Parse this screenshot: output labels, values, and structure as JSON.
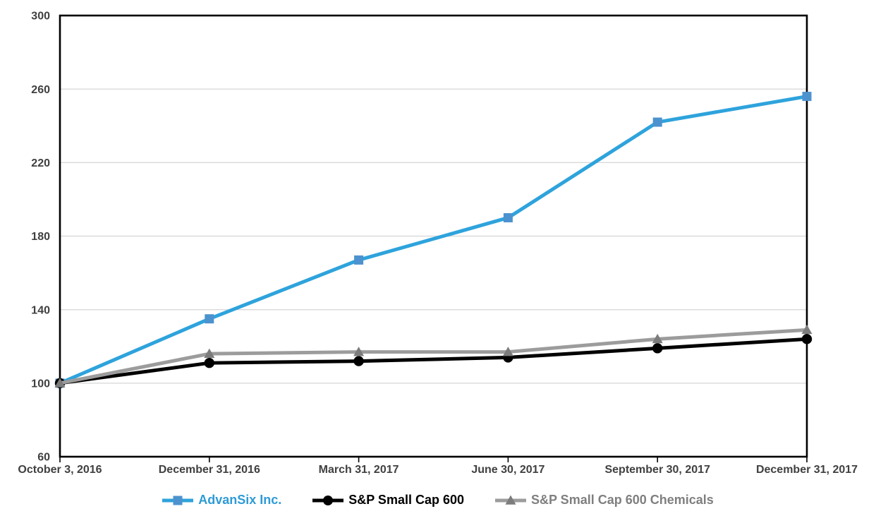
{
  "chart_data": {
    "type": "line",
    "title": "",
    "xlabel": "",
    "ylabel": "",
    "x_categories": [
      "October 3, 2016",
      "December 31, 2016",
      "March 31, 2017",
      "June 30, 2017",
      "September 30, 2017",
      "December 31, 2017"
    ],
    "y_ticks": [
      60,
      100,
      140,
      180,
      220,
      260,
      300
    ],
    "ylim": [
      60,
      300
    ],
    "grid": "horizontal",
    "legend_position": "bottom",
    "series": [
      {
        "name": "AdvanSix Inc.",
        "marker": "square",
        "line_color": "#2EA3DC",
        "marker_color": "#4C92CE",
        "label_color": "#2E9BD6",
        "values": [
          100,
          135,
          167,
          190,
          242,
          256
        ]
      },
      {
        "name": "S&P Small Cap 600",
        "marker": "circle",
        "line_color": "#000000",
        "marker_color": "#000000",
        "label_color": "#000000",
        "values": [
          100,
          111,
          112,
          114,
          119,
          124
        ]
      },
      {
        "name": "S&P Small Cap 600 Chemicals",
        "marker": "triangle",
        "line_color": "#9C9C9C",
        "marker_color": "#7C7C7C",
        "label_color": "#7F7F7F",
        "values": [
          100,
          116,
          117,
          117,
          124,
          129
        ]
      }
    ],
    "colors": {
      "background": "#FFFFFF",
      "plot_border": "#000000",
      "gridline": "#D9D9D9",
      "tick": "#000000",
      "tick_label": "#404040"
    }
  }
}
